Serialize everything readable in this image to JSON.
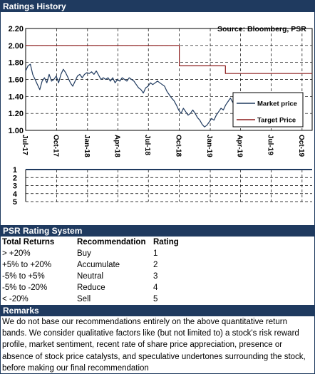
{
  "ratings_history": {
    "title": "Ratings History"
  },
  "chart_data": {
    "type": "line",
    "source_text": "Source: Bloomberg, PSR",
    "ylim": [
      1.0,
      2.2
    ],
    "y_ticks": [
      "2.20",
      "2.00",
      "1.80",
      "1.60",
      "1.40",
      "1.20",
      "1.00"
    ],
    "x_ticks": [
      "Jul-17",
      "Oct-17",
      "Jan-18",
      "Apr-18",
      "Jul-18",
      "Oct-18",
      "Jan-19",
      "Apr-19",
      "Jul-19",
      "Oct-19"
    ],
    "grid": true,
    "legend": {
      "position": "right",
      "entries": [
        "Market price",
        "Target Price"
      ]
    },
    "series": [
      {
        "name": "Market price",
        "color": "#1f3a5f",
        "points": [
          [
            "2017-07-01",
            1.7
          ],
          [
            "2017-07-08",
            1.76
          ],
          [
            "2017-07-15",
            1.78
          ],
          [
            "2017-07-22",
            1.66
          ],
          [
            "2017-07-29",
            1.6
          ],
          [
            "2017-08-05",
            1.54
          ],
          [
            "2017-08-12",
            1.48
          ],
          [
            "2017-08-19",
            1.58
          ],
          [
            "2017-08-26",
            1.62
          ],
          [
            "2017-09-02",
            1.56
          ],
          [
            "2017-09-09",
            1.66
          ],
          [
            "2017-09-16",
            1.58
          ],
          [
            "2017-09-23",
            1.6
          ],
          [
            "2017-09-30",
            1.64
          ],
          [
            "2017-10-07",
            1.56
          ],
          [
            "2017-10-14",
            1.66
          ],
          [
            "2017-10-21",
            1.72
          ],
          [
            "2017-10-28",
            1.68
          ],
          [
            "2017-11-04",
            1.62
          ],
          [
            "2017-11-11",
            1.56
          ],
          [
            "2017-11-18",
            1.52
          ],
          [
            "2017-11-25",
            1.58
          ],
          [
            "2017-12-02",
            1.64
          ],
          [
            "2017-12-09",
            1.66
          ],
          [
            "2017-12-16",
            1.62
          ],
          [
            "2017-12-23",
            1.66
          ],
          [
            "2017-12-30",
            1.68
          ],
          [
            "2018-01-06",
            1.67
          ],
          [
            "2018-01-13",
            1.69
          ],
          [
            "2018-01-20",
            1.66
          ],
          [
            "2018-01-27",
            1.7
          ],
          [
            "2018-02-03",
            1.65
          ],
          [
            "2018-02-10",
            1.6
          ],
          [
            "2018-02-17",
            1.62
          ],
          [
            "2018-02-24",
            1.6
          ],
          [
            "2018-03-03",
            1.62
          ],
          [
            "2018-03-10",
            1.58
          ],
          [
            "2018-03-17",
            1.62
          ],
          [
            "2018-03-24",
            1.56
          ],
          [
            "2018-03-31",
            1.6
          ],
          [
            "2018-04-07",
            1.58
          ],
          [
            "2018-04-14",
            1.62
          ],
          [
            "2018-04-21",
            1.6
          ],
          [
            "2018-04-28",
            1.58
          ],
          [
            "2018-05-05",
            1.62
          ],
          [
            "2018-05-12",
            1.6
          ],
          [
            "2018-05-19",
            1.58
          ],
          [
            "2018-05-26",
            1.54
          ],
          [
            "2018-06-02",
            1.5
          ],
          [
            "2018-06-09",
            1.48
          ],
          [
            "2018-06-16",
            1.44
          ],
          [
            "2018-06-23",
            1.5
          ],
          [
            "2018-06-30",
            1.52
          ],
          [
            "2018-07-07",
            1.56
          ],
          [
            "2018-07-14",
            1.54
          ],
          [
            "2018-07-21",
            1.56
          ],
          [
            "2018-07-28",
            1.58
          ],
          [
            "2018-08-04",
            1.56
          ],
          [
            "2018-08-11",
            1.54
          ],
          [
            "2018-08-18",
            1.52
          ],
          [
            "2018-08-25",
            1.46
          ],
          [
            "2018-09-01",
            1.42
          ],
          [
            "2018-09-08",
            1.38
          ],
          [
            "2018-09-15",
            1.35
          ],
          [
            "2018-09-22",
            1.3
          ],
          [
            "2018-09-29",
            1.24
          ],
          [
            "2018-10-06",
            1.2
          ],
          [
            "2018-10-13",
            1.26
          ],
          [
            "2018-10-20",
            1.22
          ],
          [
            "2018-10-27",
            1.18
          ],
          [
            "2018-11-03",
            1.2
          ],
          [
            "2018-11-10",
            1.24
          ],
          [
            "2018-11-17",
            1.2
          ],
          [
            "2018-11-24",
            1.15
          ],
          [
            "2018-12-01",
            1.12
          ],
          [
            "2018-12-08",
            1.07
          ],
          [
            "2018-12-15",
            1.04
          ],
          [
            "2018-12-22",
            1.06
          ],
          [
            "2018-12-29",
            1.1
          ],
          [
            "2019-01-05",
            1.14
          ],
          [
            "2019-01-12",
            1.12
          ],
          [
            "2019-01-19",
            1.18
          ],
          [
            "2019-01-26",
            1.22
          ],
          [
            "2019-02-02",
            1.26
          ],
          [
            "2019-02-09",
            1.24
          ],
          [
            "2019-02-16",
            1.3
          ],
          [
            "2019-02-23",
            1.34
          ],
          [
            "2019-03-02",
            1.38
          ],
          [
            "2019-03-09",
            1.33
          ],
          [
            "2019-03-16",
            1.3
          ],
          [
            "2019-03-23",
            1.34
          ],
          [
            "2019-03-30",
            1.39
          ],
          [
            "2019-04-06",
            1.43
          ],
          [
            "2019-04-13",
            1.41
          ],
          [
            "2019-04-20",
            1.4
          ]
        ]
      },
      {
        "name": "Target Price",
        "color": "#8b1a1a",
        "points": [
          [
            "2017-07-01",
            2.0
          ],
          [
            "2018-10-01",
            2.0
          ],
          [
            "2018-10-01",
            1.76
          ],
          [
            "2019-02-15",
            1.76
          ],
          [
            "2019-02-15",
            1.67
          ],
          [
            "2019-10-31",
            1.67
          ]
        ]
      }
    ],
    "rating_band": {
      "levels": [
        "1",
        "2",
        "3",
        "4",
        "5"
      ],
      "ylim": [
        1,
        5
      ],
      "points": [
        [
          "2017-07-01",
          1
        ],
        [
          "2019-10-31",
          1
        ]
      ]
    }
  },
  "rating_system": {
    "title": "PSR Rating System",
    "headers": [
      "Total Returns",
      "Recommendation",
      "Rating"
    ],
    "rows": [
      [
        "> +20%",
        "Buy",
        "1"
      ],
      [
        "+5% to +20%",
        "Accumulate",
        "2"
      ],
      [
        "-5% to +5%",
        "Neutral",
        "3"
      ],
      [
        "-5% to -20%",
        "Reduce",
        "4"
      ],
      [
        "< -20%",
        "Sell",
        "5"
      ]
    ]
  },
  "remarks": {
    "title": "Remarks",
    "text": "We do not base our recommendations entirely on the above quantitative return bands.  We consider qualitative factors like (but not limited to) a stock's risk reward profile, market sentiment, recent rate of share price appreciation, presence or absence of stock price catalysts, and speculative undertones surrounding the stock, before making our final recommendation"
  }
}
